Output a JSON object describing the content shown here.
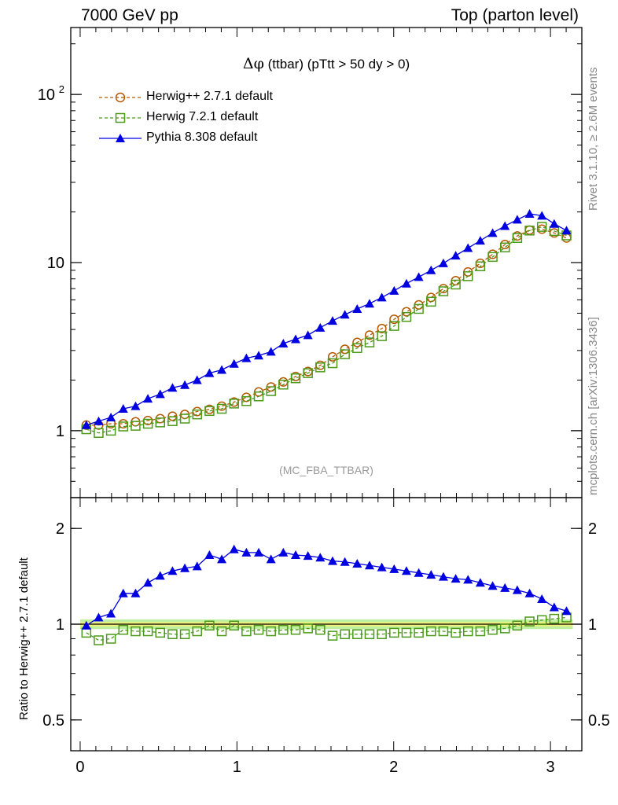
{
  "header": {
    "left": "7000 GeV pp",
    "right": "Top (parton level)"
  },
  "side_labels": {
    "rivet": "Rivet 3.1.10, ≥ 2.6M events",
    "mcplots": "mcplots.cern.ch [arXiv:1306.3436]"
  },
  "plot_title": {
    "symbol": "Δφ",
    "text": " (ttbar) (pTtt > 50 dy > 0)"
  },
  "analysis_tag": "(MC_FBA_TTBAR)",
  "ratio_ylabel": "Ratio to Herwig++ 2.7.1 default",
  "colors": {
    "herwigpp": "#b35900",
    "herwig7": "#4c9a1a",
    "pythia": "#0000e0",
    "band_inner": "#f2f27a",
    "band_outer": "#bff0a0"
  },
  "chart_data": [
    {
      "type": "line",
      "panel": "main",
      "yscale": "log",
      "xlim": [
        -0.06,
        3.2
      ],
      "ylim": [
        0.4,
        250
      ],
      "yticks": [
        {
          "value": 1,
          "label": "1",
          "sup": ""
        },
        {
          "value": 10,
          "label": "10",
          "sup": ""
        },
        {
          "value": 100,
          "label": "10",
          "sup": "2"
        }
      ],
      "xticks": [
        0,
        1,
        2,
        3
      ],
      "x": [
        0.0393,
        0.1178,
        0.1963,
        0.2749,
        0.3534,
        0.432,
        0.5105,
        0.589,
        0.6676,
        0.7461,
        0.8247,
        0.9032,
        0.9817,
        1.0603,
        1.1388,
        1.2174,
        1.2959,
        1.3744,
        1.453,
        1.5315,
        1.6101,
        1.6886,
        1.7671,
        1.8457,
        1.9242,
        2.0028,
        2.0813,
        2.1598,
        2.2384,
        2.3169,
        2.3955,
        2.474,
        2.5525,
        2.6311,
        2.7096,
        2.7882,
        2.8667,
        2.9452,
        3.0238,
        3.1023
      ],
      "series": [
        {
          "name": "Herwig++ 2.7.1 default",
          "marker": "circle",
          "color": "#b35900",
          "values": [
            1.08,
            1.08,
            1.1,
            1.1,
            1.13,
            1.15,
            1.18,
            1.22,
            1.25,
            1.3,
            1.34,
            1.4,
            1.48,
            1.58,
            1.7,
            1.82,
            1.95,
            2.1,
            2.25,
            2.45,
            2.75,
            3.05,
            3.35,
            3.7,
            4.05,
            4.6,
            5.1,
            5.6,
            6.2,
            7.0,
            7.8,
            8.8,
            9.9,
            11.2,
            12.8,
            14.4,
            15.6,
            15.8,
            15.0,
            14.0
          ]
        },
        {
          "name": "Herwig 7.2.1 default",
          "marker": "square",
          "color": "#4c9a1a",
          "values": [
            1.02,
            0.97,
            1.0,
            1.06,
            1.07,
            1.1,
            1.12,
            1.14,
            1.18,
            1.25,
            1.31,
            1.35,
            1.45,
            1.5,
            1.6,
            1.72,
            1.88,
            2.05,
            2.2,
            2.38,
            2.52,
            2.85,
            3.1,
            3.35,
            3.65,
            4.2,
            4.75,
            5.3,
            5.85,
            6.75,
            7.4,
            8.3,
            9.5,
            10.8,
            12.3,
            14.0,
            15.5,
            16.3,
            15.4,
            14.5
          ]
        },
        {
          "name": "Pythia 8.308 default",
          "marker": "triangle",
          "color": "#0000e0",
          "values": [
            1.08,
            1.14,
            1.2,
            1.35,
            1.4,
            1.55,
            1.65,
            1.8,
            1.87,
            2.0,
            2.2,
            2.3,
            2.5,
            2.7,
            2.8,
            2.95,
            3.3,
            3.5,
            3.7,
            4.1,
            4.5,
            4.9,
            5.3,
            5.7,
            6.2,
            6.8,
            7.5,
            8.2,
            9.0,
            9.9,
            11.0,
            12.2,
            13.5,
            15.0,
            16.5,
            18.0,
            19.5,
            19.0,
            17.0,
            15.5
          ]
        }
      ]
    },
    {
      "type": "line",
      "panel": "ratio",
      "yscale": "log",
      "xlim": [
        -0.06,
        3.2
      ],
      "ylim": [
        0.4,
        2.5
      ],
      "yticks": [
        {
          "value": 0.5,
          "label": "0.5",
          "sup": ""
        },
        {
          "value": 1,
          "label": "1",
          "sup": ""
        },
        {
          "value": 2,
          "label": "2",
          "sup": ""
        }
      ],
      "xticks": [
        0,
        1,
        2,
        3
      ],
      "xticklabels": [
        "0",
        "1",
        "2",
        "3"
      ],
      "reference_line": 1.0,
      "band_inner": [
        0.985,
        1.015
      ],
      "band_outer": [
        0.965,
        1.035
      ],
      "series": [
        {
          "name": "Herwig 7.2.1 default",
          "marker": "square",
          "color": "#4c9a1a",
          "values": [
            0.94,
            0.89,
            0.9,
            0.96,
            0.95,
            0.95,
            0.94,
            0.93,
            0.93,
            0.95,
            0.99,
            0.95,
            0.99,
            0.95,
            0.96,
            0.95,
            0.96,
            0.96,
            0.97,
            0.96,
            0.92,
            0.93,
            0.93,
            0.93,
            0.93,
            0.94,
            0.94,
            0.94,
            0.95,
            0.95,
            0.94,
            0.95,
            0.95,
            0.96,
            0.97,
            0.99,
            1.02,
            1.03,
            1.04,
            1.05
          ]
        },
        {
          "name": "Pythia 8.308 default",
          "marker": "triangle",
          "color": "#0000e0",
          "values": [
            0.99,
            1.05,
            1.08,
            1.25,
            1.25,
            1.35,
            1.42,
            1.47,
            1.5,
            1.52,
            1.65,
            1.6,
            1.72,
            1.68,
            1.68,
            1.6,
            1.68,
            1.65,
            1.64,
            1.62,
            1.58,
            1.57,
            1.55,
            1.53,
            1.51,
            1.49,
            1.47,
            1.45,
            1.43,
            1.41,
            1.39,
            1.38,
            1.35,
            1.32,
            1.3,
            1.28,
            1.25,
            1.2,
            1.13,
            1.1
          ]
        }
      ]
    }
  ]
}
